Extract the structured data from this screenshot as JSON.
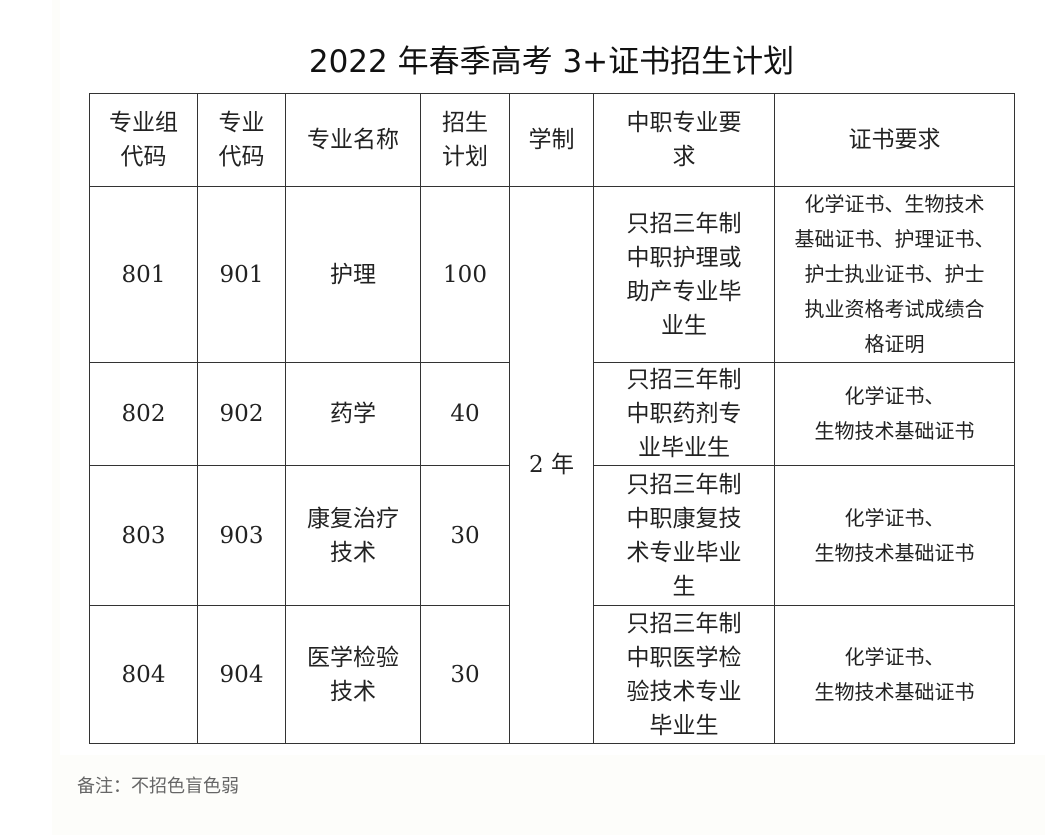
{
  "title": "2022 年春季高考 3+证书招生计划",
  "headers": [
    "专业组\n代码",
    "专业\n代码",
    "专业名称",
    "招生\n计划",
    "学制",
    "中职专业要\n求",
    "证书要求"
  ],
  "duration": "2 年",
  "rows": [
    {
      "group": "801",
      "code": "901",
      "name": "护理",
      "plan": "100",
      "requirement": "只招三年制\n中职护理或\n助产专业毕\n业生",
      "cert": "化学证书、生物技术\n基础证书、护理证书、\n护士执业证书、护士\n执业资格考试成绩合\n格证明"
    },
    {
      "group": "802",
      "code": "902",
      "name": "药学",
      "plan": "40",
      "requirement": "只招三年制\n中职药剂专\n业毕业生",
      "cert": "化学证书、\n生物技术基础证书"
    },
    {
      "group": "803",
      "code": "903",
      "name": "康复治疗\n技术",
      "plan": "30",
      "requirement": "只招三年制\n中职康复技\n术专业毕业\n生",
      "cert": "化学证书、\n生物技术基础证书"
    },
    {
      "group": "804",
      "code": "904",
      "name": "医学检验\n技术",
      "plan": "30",
      "requirement": "只招三年制\n中职医学检\n验技术专业\n毕业生",
      "cert": "化学证书、\n生物技术基础证书"
    }
  ],
  "note": "备注：不招色盲色弱"
}
